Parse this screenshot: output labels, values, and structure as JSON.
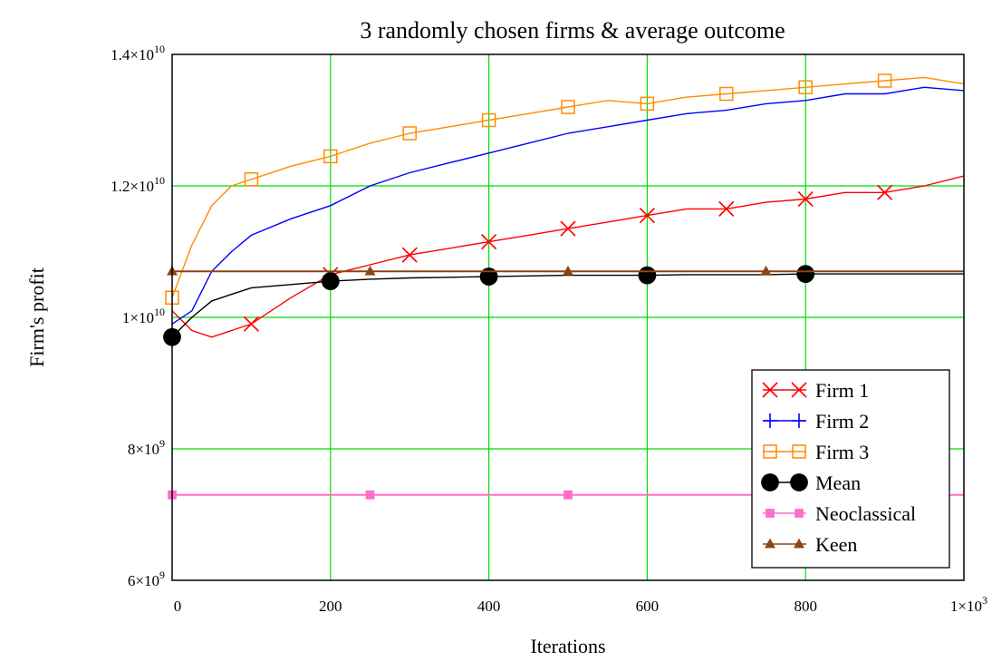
{
  "chart_data": {
    "type": "line",
    "title": "3 randomly chosen firms & average outcome",
    "xlabel": "Iterations",
    "ylabel": "Firm's profit",
    "xlim": [
      0,
      1000
    ],
    "ylim": [
      6000000000,
      14000000000
    ],
    "grid": true,
    "grid_color": "#00dd00",
    "legend_position": "bottom-right",
    "x_ticks": [
      {
        "value": 0,
        "label": "0"
      },
      {
        "value": 200,
        "label": "200"
      },
      {
        "value": 400,
        "label": "400"
      },
      {
        "value": 600,
        "label": "600"
      },
      {
        "value": 800,
        "label": "800"
      },
      {
        "value": 1000,
        "label": "1×10",
        "exp": "3"
      }
    ],
    "y_ticks": [
      {
        "value": 6000000000,
        "label": "6×10",
        "exp": "9"
      },
      {
        "value": 8000000000,
        "label": "8×10",
        "exp": "9"
      },
      {
        "value": 10000000000,
        "label": "1×10",
        "exp": "10"
      },
      {
        "value": 12000000000,
        "label": "1.2×10",
        "exp": "10"
      },
      {
        "value": 14000000000,
        "label": "1.4×10",
        "exp": "10"
      }
    ],
    "series": [
      {
        "name": "Firm 1",
        "color": "#ff0000",
        "marker": "x",
        "x": [
          0,
          25,
          50,
          75,
          100,
          150,
          200,
          250,
          300,
          350,
          400,
          450,
          500,
          550,
          600,
          650,
          700,
          750,
          800,
          850,
          900,
          950,
          1000
        ],
        "y": [
          10100000000,
          9800000000,
          9700000000,
          9800000000,
          9900000000,
          10300000000,
          10650000000,
          10800000000,
          10950000000,
          11050000000,
          11150000000,
          11250000000,
          11350000000,
          11450000000,
          11550000000,
          11650000000,
          11650000000,
          11750000000,
          11800000000,
          11900000000,
          11900000000,
          12000000000,
          12150000000
        ],
        "marker_x": [
          100,
          200,
          300,
          400,
          500,
          600,
          700,
          800,
          900
        ]
      },
      {
        "name": "Firm 2",
        "color": "#0000ff",
        "marker": "plus",
        "x": [
          0,
          25,
          50,
          75,
          100,
          150,
          200,
          250,
          300,
          350,
          400,
          450,
          500,
          550,
          600,
          650,
          700,
          750,
          800,
          850,
          900,
          950,
          1000
        ],
        "y": [
          9900000000,
          10100000000,
          10700000000,
          11000000000,
          11250000000,
          11500000000,
          11700000000,
          12000000000,
          12200000000,
          12350000000,
          12500000000,
          12650000000,
          12800000000,
          12900000000,
          13000000000,
          13100000000,
          13150000000,
          13250000000,
          13300000000,
          13400000000,
          13400000000,
          13500000000,
          13450000000
        ],
        "marker_x": []
      },
      {
        "name": "Firm 3",
        "color": "#ff8c00",
        "marker": "square",
        "x": [
          0,
          25,
          50,
          75,
          100,
          150,
          200,
          250,
          300,
          350,
          400,
          450,
          500,
          550,
          600,
          650,
          700,
          750,
          800,
          850,
          900,
          950,
          1000
        ],
        "y": [
          10300000000,
          11100000000,
          11700000000,
          12000000000,
          12100000000,
          12300000000,
          12450000000,
          12650000000,
          12800000000,
          12900000000,
          13000000000,
          13100000000,
          13200000000,
          13300000000,
          13250000000,
          13350000000,
          13400000000,
          13450000000,
          13500000000,
          13550000000,
          13600000000,
          13650000000,
          13550000000
        ],
        "marker_x": [
          0,
          100,
          200,
          300,
          400,
          500,
          600,
          700,
          800,
          900
        ]
      },
      {
        "name": "Mean",
        "color": "#000000",
        "marker": "circle",
        "x": [
          0,
          25,
          50,
          75,
          100,
          150,
          200,
          250,
          300,
          350,
          400,
          450,
          500,
          550,
          600,
          650,
          700,
          750,
          800,
          850,
          900,
          950,
          1000
        ],
        "y": [
          9700000000,
          10000000000,
          10250000000,
          10350000000,
          10450000000,
          10500000000,
          10550000000,
          10580000000,
          10600000000,
          10610000000,
          10620000000,
          10630000000,
          10640000000,
          10640000000,
          10640000000,
          10650000000,
          10650000000,
          10650000000,
          10660000000,
          10660000000,
          10660000000,
          10660000000,
          10660000000
        ],
        "marker_x": [
          0,
          200,
          400,
          600,
          800
        ]
      },
      {
        "name": "Neoclassical",
        "color": "#ff6fc8",
        "marker": "square-filled",
        "x": [
          0,
          1000
        ],
        "y": [
          7300000000,
          7300000000
        ],
        "marker_x": [
          0,
          250,
          500,
          750
        ]
      },
      {
        "name": "Keen",
        "color": "#8b4513",
        "marker": "triangle",
        "x": [
          0,
          1000
        ],
        "y": [
          10700000000,
          10700000000
        ],
        "marker_x": [
          0,
          250,
          500,
          750
        ]
      }
    ]
  }
}
